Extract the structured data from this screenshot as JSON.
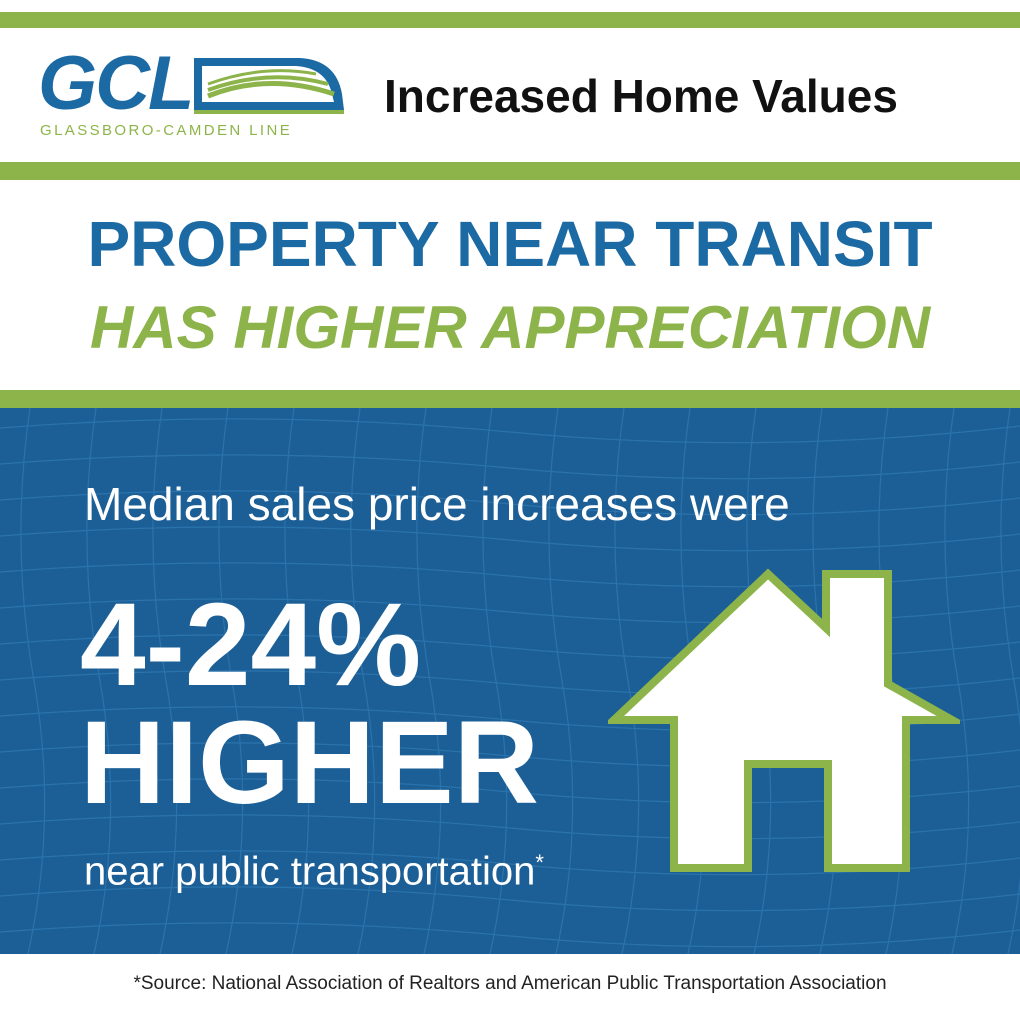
{
  "logo": {
    "letters": "GCL",
    "tagline": "GLASSBORO-CAMDEN LINE"
  },
  "header": {
    "title": "Increased Home Values"
  },
  "headline": {
    "line1": "PROPERTY NEAR TRANSIT",
    "line2": "HAS HIGHER APPRECIATION"
  },
  "panel": {
    "lead": "Median sales price increases were",
    "value": "4-24%",
    "word": "HIGHER",
    "sub": "near public transportation",
    "sub_mark": "*"
  },
  "footer": {
    "source": "*Source: National Association of Realtors and American Public Transportation Association"
  },
  "colors": {
    "brand_blue": "#1c6aa3",
    "panel_blue": "#1c5f96",
    "brand_green": "#8db44a",
    "text_white": "#ffffff"
  },
  "icons": [
    "train-icon",
    "house-icon"
  ]
}
